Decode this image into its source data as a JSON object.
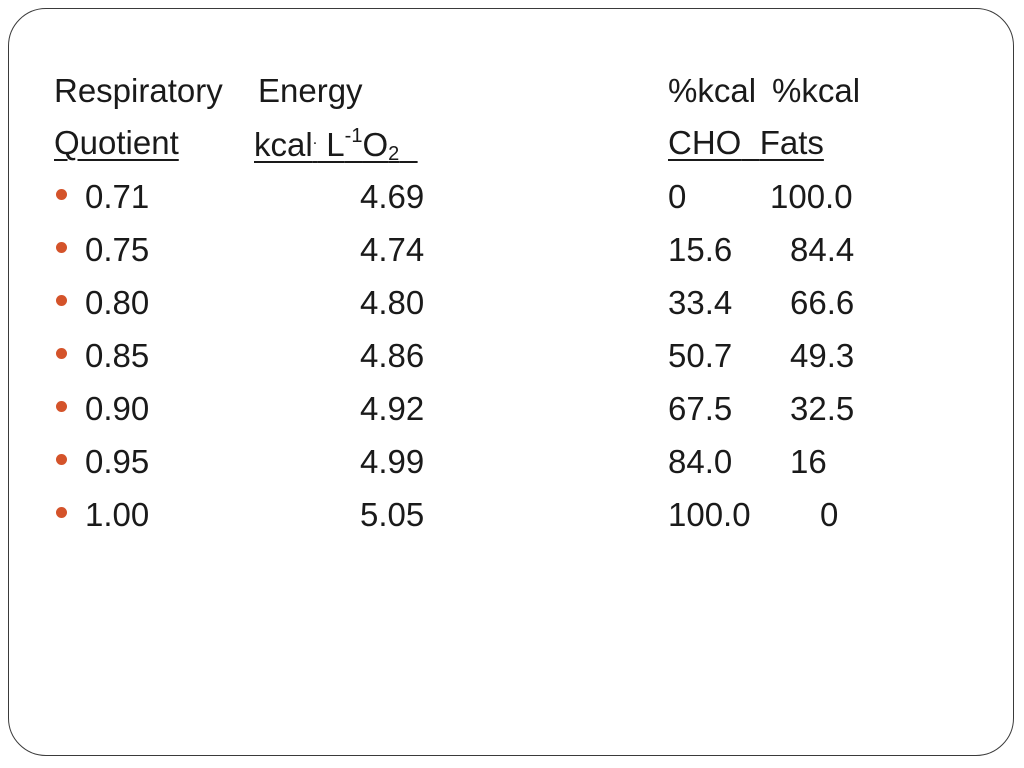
{
  "header": {
    "col1_line1": "Respiratory",
    "col2_line1": "Energy",
    "col3_line1": "%kcal",
    "col4_line1": "%kcal",
    "col1_line2": "Quotient",
    "col2_line2_kcal": "kcal",
    "col2_line2_dot": ".",
    "col2_line2_L": " L",
    "col2_line2_exp": "-1",
    "col2_line2_O": "O",
    "col2_line2_sub": "2",
    "col3_line2": "CHO",
    "col4_line2": "Fats"
  },
  "rows": [
    {
      "rq": "0.71",
      "energy": "4.69",
      "cho": "0",
      "fats": "100.0"
    },
    {
      "rq": "0.75",
      "energy": "4.74",
      "cho": "15.6",
      "fats": "84.4"
    },
    {
      "rq": "0.80",
      "energy": "4.80",
      "cho": "33.4",
      "fats": "66.6"
    },
    {
      "rq": "0.85",
      "energy": "4.86",
      "cho": "50.7",
      "fats": "49.3"
    },
    {
      "rq": "0.90",
      "energy": "4.92",
      "cho": "67.5",
      "fats": "32.5"
    },
    {
      "rq": "0.95",
      "energy": "4.99",
      "cho": "84.0",
      "fats": "16"
    },
    {
      "rq": "1.00",
      "energy": "5.05",
      "cho": "100.0",
      "fats": "0"
    }
  ],
  "colors": {
    "bullet": "#d4532a",
    "text": "#1a1a1a",
    "frame": "#3a3a3a"
  }
}
